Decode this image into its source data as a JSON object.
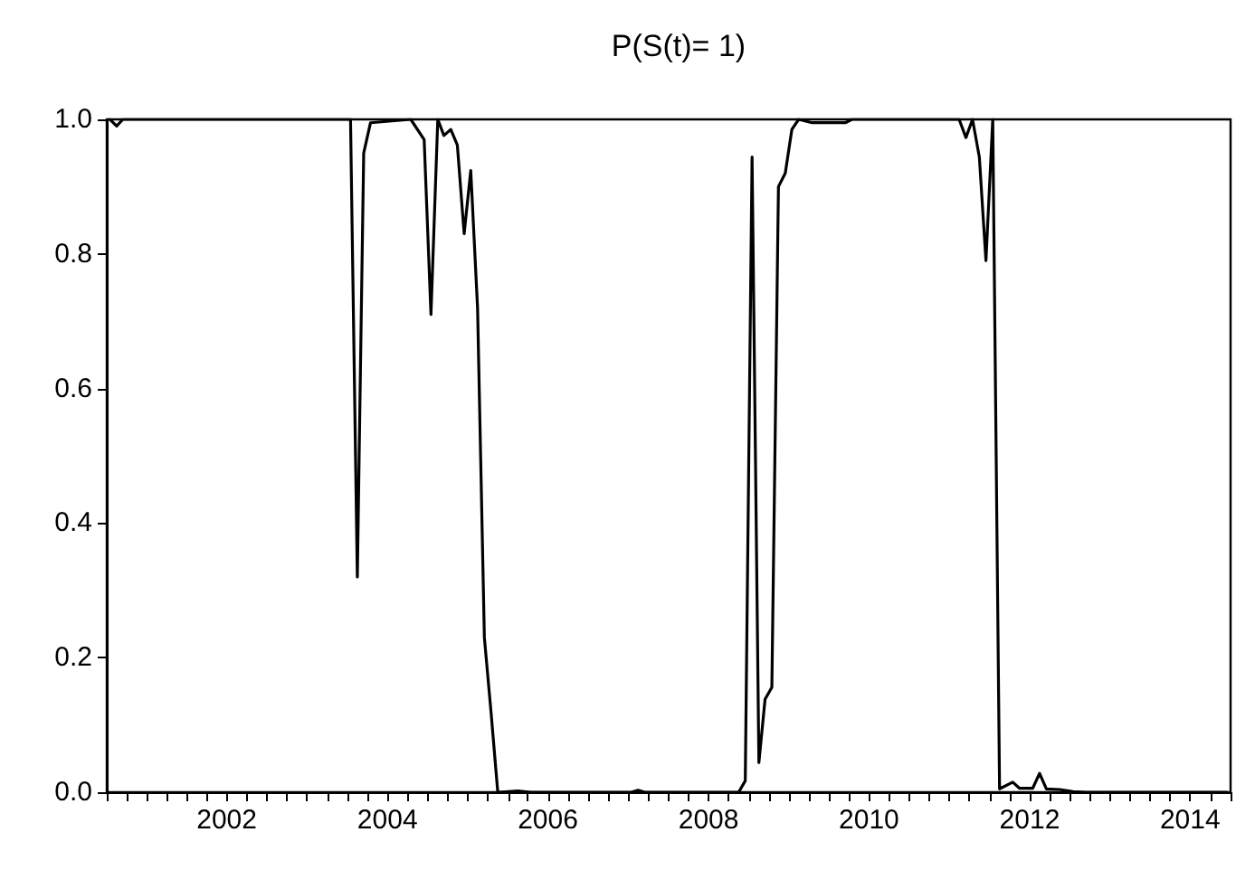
{
  "chart_data": {
    "type": "line",
    "title": "P(S(t)= 1)",
    "xlim": [
      "2001-01-01",
      "2015-01-01"
    ],
    "xticks": [
      {
        "value": "2001-01-01",
        "label": null
      },
      {
        "value": "2001-04-01",
        "label": null
      },
      {
        "value": "2001-07-01",
        "label": null
      },
      {
        "value": "2001-10-01",
        "label": null
      },
      {
        "value": "2002-01-01",
        "label": null
      },
      {
        "value": "2002-04-01",
        "label": null
      },
      {
        "value": "2002-07-01",
        "label": "2002"
      },
      {
        "value": "2002-10-01",
        "label": null
      },
      {
        "value": "2003-01-01",
        "label": null
      },
      {
        "value": "2003-04-01",
        "label": null
      },
      {
        "value": "2003-07-01",
        "label": null
      },
      {
        "value": "2003-10-01",
        "label": null
      },
      {
        "value": "2004-01-01",
        "label": null
      },
      {
        "value": "2004-04-01",
        "label": null
      },
      {
        "value": "2004-07-01",
        "label": "2004"
      },
      {
        "value": "2004-10-01",
        "label": null
      },
      {
        "value": "2005-01-01",
        "label": null
      },
      {
        "value": "2005-04-01",
        "label": null
      },
      {
        "value": "2005-07-01",
        "label": null
      },
      {
        "value": "2005-10-01",
        "label": null
      },
      {
        "value": "2006-01-01",
        "label": null
      },
      {
        "value": "2006-04-01",
        "label": null
      },
      {
        "value": "2006-07-01",
        "label": "2006"
      },
      {
        "value": "2006-10-01",
        "label": null
      },
      {
        "value": "2007-01-01",
        "label": null
      },
      {
        "value": "2007-04-01",
        "label": null
      },
      {
        "value": "2007-07-01",
        "label": null
      },
      {
        "value": "2007-10-01",
        "label": null
      },
      {
        "value": "2008-01-01",
        "label": null
      },
      {
        "value": "2008-04-01",
        "label": null
      },
      {
        "value": "2008-07-01",
        "label": "2008"
      },
      {
        "value": "2008-10-01",
        "label": null
      },
      {
        "value": "2009-01-01",
        "label": null
      },
      {
        "value": "2009-04-01",
        "label": null
      },
      {
        "value": "2009-07-01",
        "label": null
      },
      {
        "value": "2009-10-01",
        "label": null
      },
      {
        "value": "2010-01-01",
        "label": null
      },
      {
        "value": "2010-04-01",
        "label": null
      },
      {
        "value": "2010-07-01",
        "label": "2010"
      },
      {
        "value": "2010-10-01",
        "label": null
      },
      {
        "value": "2011-01-01",
        "label": null
      },
      {
        "value": "2011-04-01",
        "label": null
      },
      {
        "value": "2011-07-01",
        "label": null
      },
      {
        "value": "2011-10-01",
        "label": null
      },
      {
        "value": "2012-01-01",
        "label": null
      },
      {
        "value": "2012-04-01",
        "label": null
      },
      {
        "value": "2012-07-01",
        "label": "2012"
      },
      {
        "value": "2012-10-01",
        "label": null
      },
      {
        "value": "2013-01-01",
        "label": null
      },
      {
        "value": "2013-04-01",
        "label": null
      },
      {
        "value": "2013-07-01",
        "label": null
      },
      {
        "value": "2013-10-01",
        "label": null
      },
      {
        "value": "2014-01-01",
        "label": null
      },
      {
        "value": "2014-04-01",
        "label": null
      },
      {
        "value": "2014-07-01",
        "label": "2014"
      },
      {
        "value": "2014-10-01",
        "label": null
      },
      {
        "value": "2015-01-01",
        "label": null
      }
    ],
    "ylim": [
      0,
      1
    ],
    "yticks": [
      {
        "value": 0,
        "label": "0.0"
      },
      {
        "value": 0.2,
        "label": "0.2"
      },
      {
        "value": 0.4,
        "label": "0.4"
      },
      {
        "value": 0.6,
        "label": "0.6"
      },
      {
        "value": 0.8,
        "label": "0.8"
      },
      {
        "value": 1,
        "label": "1.0"
      }
    ],
    "grid": false,
    "marker": "none",
    "line_style": "solid",
    "series": [
      {
        "color": "#000000",
        "x": [
          "2001-01-15",
          "2001-02-15",
          "2001-03-15",
          "2004-01-15",
          "2004-02-15",
          "2004-03-15",
          "2004-04-15",
          "2004-10-15",
          "2004-12-15",
          "2005-01-15",
          "2005-02-15",
          "2005-03-15",
          "2005-04-15",
          "2005-05-15",
          "2005-06-15",
          "2005-07-15",
          "2005-08-15",
          "2005-09-15",
          "2005-10-15",
          "2005-11-15",
          "2006-02-15",
          "2006-04-15",
          "2007-07-15",
          "2007-08-15",
          "2007-09-15",
          "2008-11-15",
          "2008-12-15",
          "2009-01-15",
          "2009-02-15",
          "2009-03-15",
          "2009-04-15",
          "2009-05-15",
          "2009-06-15",
          "2009-07-15",
          "2009-08-15",
          "2009-10-15",
          "2010-03-15",
          "2010-04-15",
          "2011-08-15",
          "2011-09-15",
          "2011-10-15",
          "2011-11-15",
          "2011-12-15",
          "2012-01-15",
          "2012-02-15",
          "2012-04-15",
          "2012-05-15",
          "2012-07-15",
          "2012-08-15",
          "2012-09-15",
          "2012-11-15",
          "2013-01-15",
          "2013-03-15",
          "2014-12-15"
        ],
        "values": [
          1,
          0.99,
          1,
          1,
          0.32,
          0.95,
          0.995,
          1,
          0.97,
          0.71,
          1,
          0.976,
          0.985,
          0.962,
          0.83,
          0.924,
          0.72,
          0.23,
          0.12,
          0,
          0.002,
          0,
          0,
          0.003,
          0,
          0,
          0.017,
          0.944,
          0.044,
          0.138,
          0.156,
          0.9,
          0.92,
          0.985,
          1,
          0.995,
          0.995,
          1,
          1,
          0.973,
          1,
          0.944,
          0.79,
          1,
          0.005,
          0.015,
          0.006,
          0.006,
          0.028,
          0.005,
          0.004,
          0.001,
          0,
          0
        ]
      }
    ]
  }
}
